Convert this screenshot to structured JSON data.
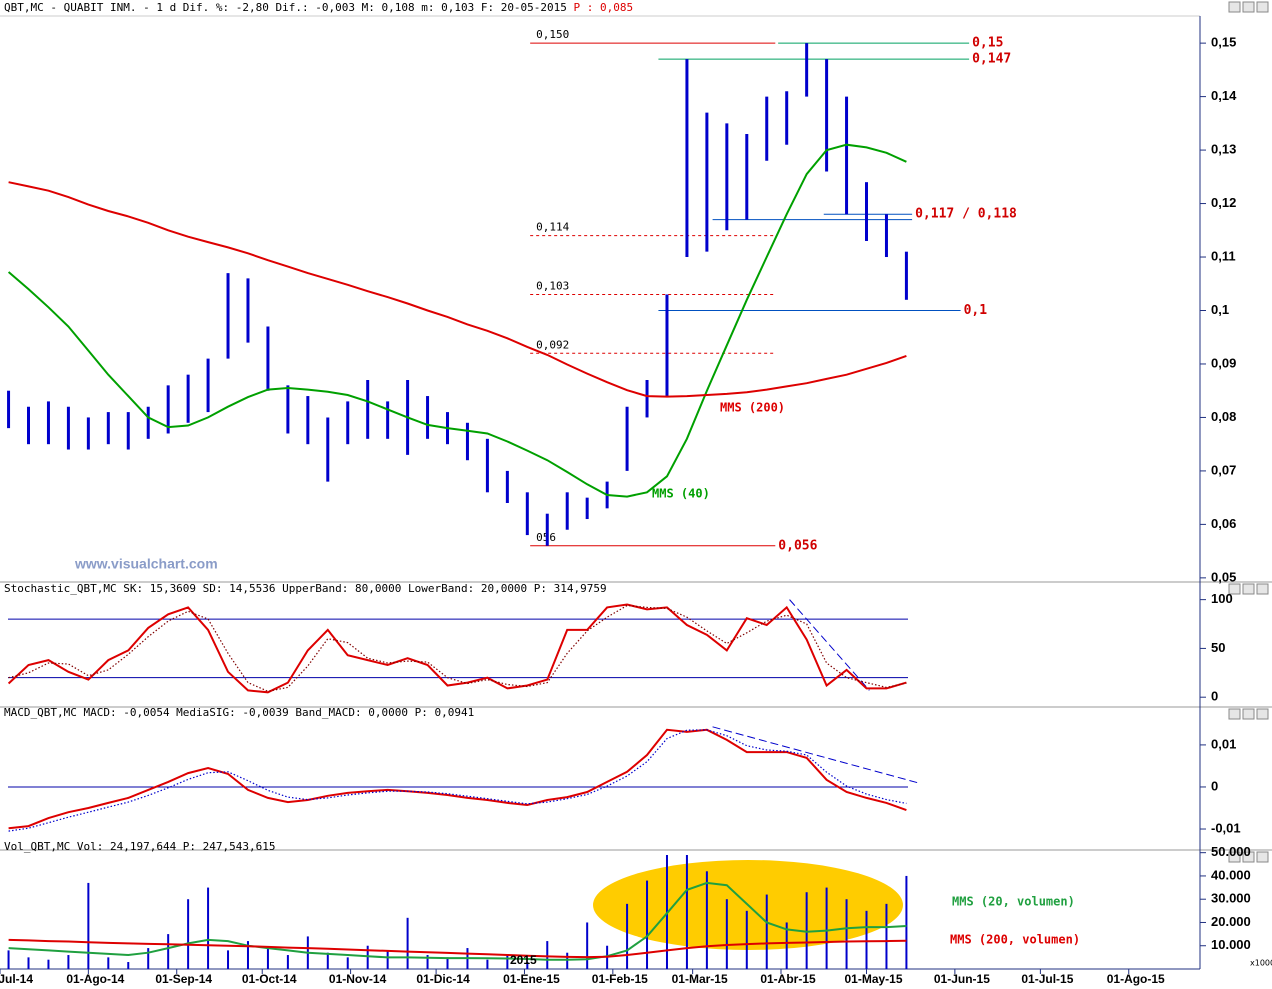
{
  "chart_data": [
    {
      "type": "candlestick",
      "title": "QBT,MC - QUABIT INM. -  1 d Dif. %: -2,80 Dif.: -0,003 M: 0,108 m: 0,103 F: 20-05-2015 ",
      "title_price": "P : 0,085",
      "watermark": "www.visualchart.com",
      "color": "#0000cc",
      "xlim": [
        "2014-07-01",
        "2015-08-26"
      ],
      "x": [
        "2014-07-04",
        "2014-07-11",
        "2014-07-18",
        "2014-07-25",
        "2014-08-01",
        "2014-08-08",
        "2014-08-15",
        "2014-08-22",
        "2014-08-29",
        "2014-09-05",
        "2014-09-12",
        "2014-09-19",
        "2014-09-26",
        "2014-10-03",
        "2014-10-10",
        "2014-10-17",
        "2014-10-24",
        "2014-10-31",
        "2014-11-07",
        "2014-11-14",
        "2014-11-21",
        "2014-11-28",
        "2014-12-05",
        "2014-12-12",
        "2014-12-19",
        "2014-12-26",
        "2015-01-02",
        "2015-01-09",
        "2015-01-16",
        "2015-01-23",
        "2015-01-30",
        "2015-02-06",
        "2015-02-13",
        "2015-02-20",
        "2015-02-27",
        "2015-03-06",
        "2015-03-13",
        "2015-03-20",
        "2015-03-27",
        "2015-04-03",
        "2015-04-10",
        "2015-04-17",
        "2015-04-24",
        "2015-05-01",
        "2015-05-08",
        "2015-05-15"
      ],
      "high": [
        0.085,
        0.082,
        0.083,
        0.082,
        0.08,
        0.081,
        0.081,
        0.082,
        0.086,
        0.088,
        0.091,
        0.107,
        0.106,
        0.097,
        0.086,
        0.084,
        0.08,
        0.083,
        0.087,
        0.083,
        0.087,
        0.084,
        0.081,
        0.079,
        0.076,
        0.07,
        0.066,
        0.062,
        0.066,
        0.065,
        0.068,
        0.082,
        0.087,
        0.103,
        0.147,
        0.137,
        0.135,
        0.133,
        0.14,
        0.141,
        0.15,
        0.147,
        0.14,
        0.124,
        0.118,
        0.111
      ],
      "low": [
        0.078,
        0.075,
        0.075,
        0.074,
        0.074,
        0.075,
        0.074,
        0.076,
        0.077,
        0.079,
        0.081,
        0.091,
        0.094,
        0.085,
        0.077,
        0.075,
        0.068,
        0.075,
        0.076,
        0.076,
        0.073,
        0.076,
        0.075,
        0.072,
        0.066,
        0.064,
        0.058,
        0.056,
        0.059,
        0.061,
        0.063,
        0.07,
        0.08,
        0.084,
        0.11,
        0.111,
        0.115,
        0.117,
        0.128,
        0.131,
        0.14,
        0.126,
        0.118,
        0.113,
        0.11,
        0.102
      ],
      "series": [
        {
          "name": "MMS (40)",
          "color": "#00a000",
          "values": [
            0.1072,
            0.104,
            0.1006,
            0.097,
            0.0925,
            0.088,
            0.084,
            0.08,
            0.0782,
            0.0785,
            0.08,
            0.082,
            0.0838,
            0.0852,
            0.0855,
            0.0852,
            0.0848,
            0.0842,
            0.083,
            0.0815,
            0.08,
            0.0786,
            0.078,
            0.0775,
            0.077,
            0.0755,
            0.0738,
            0.072,
            0.0698,
            0.0675,
            0.0655,
            0.0652,
            0.066,
            0.069,
            0.076,
            0.085,
            0.0935,
            0.102,
            0.11,
            0.118,
            0.1255,
            0.13,
            0.131,
            0.1305,
            0.1295,
            0.1278
          ]
        },
        {
          "name": "MMS (200)",
          "color": "#dd0000",
          "values": [
            0.124,
            0.1232,
            0.1224,
            0.1212,
            0.1198,
            0.1186,
            0.1176,
            0.1164,
            0.115,
            0.1138,
            0.1128,
            0.1118,
            0.1107,
            0.1094,
            0.1082,
            0.107,
            0.1059,
            0.1048,
            0.1036,
            0.1025,
            0.1013,
            0.1,
            0.0988,
            0.0974,
            0.0962,
            0.0948,
            0.0932,
            0.0917,
            0.0899,
            0.0882,
            0.0866,
            0.0851,
            0.084,
            0.0839,
            0.084,
            0.0842,
            0.0844,
            0.0847,
            0.0852,
            0.0858,
            0.0864,
            0.0872,
            0.088,
            0.0891,
            0.0902,
            0.0915
          ]
        }
      ],
      "ylim": [
        0.0496,
        0.1547
      ],
      "yticks": [
        {
          "value": 0.15,
          "label": "0,15"
        },
        {
          "value": 0.14,
          "label": "0,14"
        },
        {
          "value": 0.13,
          "label": "0,13"
        },
        {
          "value": 0.12,
          "label": "0,12"
        },
        {
          "value": 0.11,
          "label": "0,11"
        },
        {
          "value": 0.1,
          "label": "0,1"
        },
        {
          "value": 0.09,
          "label": "0,09"
        },
        {
          "value": 0.08,
          "label": "0,08"
        },
        {
          "value": 0.07,
          "label": "0,07"
        },
        {
          "value": 0.06,
          "label": "0,06"
        },
        {
          "value": 0.05,
          "label": "0,05"
        }
      ],
      "annotations": [
        {
          "value": 0.15,
          "start": "2015-01-03",
          "end": "2015-03-30",
          "color": "#dd0000",
          "dashed": false,
          "label_start": "0,150"
        },
        {
          "value": 0.15,
          "start": "2015-03-31",
          "end": "2015-06-06",
          "color": "#00a060",
          "dashed": false,
          "label_end": "0,15"
        },
        {
          "value": 0.147,
          "start": "2015-02-17",
          "end": "2015-06-06",
          "color": "#00a060",
          "dashed": false,
          "label_end": "0,147"
        },
        {
          "value": 0.114,
          "start": "2015-01-03",
          "end": "2015-03-30",
          "color": "#dd0000",
          "dashed": true,
          "label_start": "0,114"
        },
        {
          "value": 0.103,
          "start": "2015-01-03",
          "end": "2015-03-30",
          "color": "#dd0000",
          "dashed": true,
          "label_start": "0,103"
        },
        {
          "value": 0.092,
          "start": "2015-01-03",
          "end": "2015-03-30",
          "color": "#dd0000",
          "dashed": true,
          "label_start": "0,092"
        },
        {
          "value": 0.117,
          "start": "2015-03-08",
          "end": "2015-05-17",
          "color": "#0050c0",
          "dashed": false
        },
        {
          "value": 0.118,
          "start": "2015-04-16",
          "end": "2015-05-17",
          "color": "#0050c0",
          "dashed": false,
          "label_end": "0,117 / 0,118"
        },
        {
          "value": 0.1,
          "start": "2015-02-17",
          "end": "2015-06-03",
          "color": "#0050c0",
          "dashed": false,
          "label_end": "0,1"
        },
        {
          "value": 0.056,
          "start": "2015-01-03",
          "end": "2015-03-30",
          "color": "#dd0000",
          "dashed": false,
          "label_start": "056",
          "label_end": "0,056"
        }
      ]
    },
    {
      "type": "line",
      "title": "Stochastic_QBT,MC SK: 15,3609 SD: 14,5536 UpperBand: 80,0000 LowerBand: 20,0000 P: 314,9759",
      "series": [
        {
          "color": "#dd0000",
          "values": [
            14,
            33,
            38,
            26,
            18,
            38,
            48,
            71,
            85,
            92,
            69,
            26,
            7,
            5,
            15,
            48,
            69,
            43,
            38,
            33,
            40,
            33,
            12,
            15,
            20,
            9,
            12,
            18,
            69,
            69,
            92,
            95,
            90,
            92,
            74,
            64,
            48,
            81,
            74,
            92,
            59,
            12,
            28,
            9,
            9,
            15
          ]
        },
        {
          "color": "#800000",
          "dotted": true,
          "values": [
            20,
            25,
            35,
            34,
            22,
            28,
            44,
            62,
            78,
            88,
            80,
            45,
            15,
            6,
            10,
            32,
            60,
            56,
            40,
            35,
            37,
            36,
            20,
            14,
            18,
            13,
            11,
            15,
            45,
            68,
            82,
            94,
            92,
            91,
            82,
            68,
            55,
            66,
            78,
            84,
            75,
            35,
            20,
            15,
            10,
            14.5
          ]
        }
      ],
      "bands": [
        80,
        20
      ],
      "trendlines": [
        {
          "start": "2015-04-04",
          "end": "2015-05-02",
          "values": [
            100,
            7
          ],
          "color": "#0000cc"
        }
      ],
      "ylim": [
        -8,
        115
      ],
      "yticks": [
        100,
        50,
        0
      ]
    },
    {
      "type": "line",
      "title": "MACD_QBT,MC MACD: -0,0054 MediaSIG: -0,0039 Band_MACD: 0,0000 P: 0,0941",
      "series": [
        {
          "color": "#dd0000",
          "values": [
            -0.0098,
            -0.0093,
            -0.0074,
            -0.006,
            -0.005,
            -0.0038,
            -0.0026,
            -0.0007,
            0.0012,
            0.0033,
            0.0045,
            0.0031,
            -0.0007,
            -0.0026,
            -0.0036,
            -0.0031,
            -0.0021,
            -0.0014,
            -0.001,
            -0.0007,
            -0.001,
            -0.0014,
            -0.0019,
            -0.0026,
            -0.0031,
            -0.0038,
            -0.0043,
            -0.0031,
            -0.0024,
            -0.0012,
            0.0012,
            0.0036,
            0.0076,
            0.0136,
            0.0131,
            0.0136,
            0.0112,
            0.0083,
            0.0083,
            0.0083,
            0.0069,
            0.0017,
            -0.0012,
            -0.0026,
            -0.0038,
            -0.0055
          ]
        },
        {
          "color": "#0000cc",
          "dotted": true,
          "values": [
            -0.0105,
            -0.0098,
            -0.0085,
            -0.0072,
            -0.006,
            -0.0048,
            -0.0036,
            -0.002,
            -0.0002,
            0.0018,
            0.0034,
            0.0036,
            0.0015,
            -0.0008,
            -0.0024,
            -0.003,
            -0.0026,
            -0.0019,
            -0.0014,
            -0.001,
            -0.001,
            -0.0012,
            -0.0016,
            -0.0022,
            -0.0028,
            -0.0034,
            -0.004,
            -0.0036,
            -0.0028,
            -0.0018,
            0.0002,
            0.0026,
            0.006,
            0.0115,
            0.0135,
            0.0136,
            0.0122,
            0.0098,
            0.0088,
            0.0085,
            0.0076,
            0.0035,
            0.0002,
            -0.0017,
            -0.003,
            -0.0039
          ]
        }
      ],
      "bands": [
        0
      ],
      "trendlines": [
        {
          "start": "2015-03-08",
          "end": "2015-05-19",
          "values": [
            0.0143,
            0.001
          ],
          "color": "#0000cc"
        }
      ],
      "ylim": [
        -0.0138,
        0.0183
      ],
      "yticks": [
        {
          "value": 0.01,
          "label": "0,01"
        },
        0,
        {
          "value": -0.01,
          "label": "-0,01"
        }
      ]
    },
    {
      "type": "bar",
      "title": "Vol_QBT,MC Vol: 24,197,644 P: 247,543,615",
      "color": "#0000cc",
      "values": [
        8000,
        5000,
        4000,
        6000,
        37000,
        5000,
        3000,
        9000,
        15000,
        30000,
        35000,
        8000,
        12000,
        9000,
        6000,
        14000,
        7000,
        5000,
        10000,
        8000,
        22000,
        6000,
        5000,
        9000,
        4000,
        6000,
        3000,
        12000,
        7000,
        20000,
        10000,
        28000,
        38000,
        49000,
        49000,
        42000,
        30000,
        25000,
        32000,
        20000,
        33000,
        35000,
        30000,
        25000,
        28000,
        40000
      ],
      "series": [
        {
          "name": "MMS (20, volumen)",
          "color": "#20a040",
          "values": [
            9000,
            8500,
            8000,
            7500,
            7000,
            6500,
            6000,
            7000,
            9000,
            11000,
            12500,
            12000,
            10000,
            9000,
            8000,
            7000,
            6500,
            6000,
            5500,
            5000,
            5000,
            4800,
            4700,
            4700,
            4600,
            4500,
            4300,
            4000,
            4000,
            4200,
            5500,
            8000,
            14000,
            24000,
            34000,
            37000,
            36000,
            28000,
            20000,
            17000,
            16000,
            16500,
            17500,
            18000,
            18000,
            18500
          ]
        },
        {
          "name": "MMS (200, volumen)",
          "color": "#dd0000",
          "values": [
            12500,
            12300,
            12000,
            11800,
            11500,
            11200,
            11000,
            10800,
            10600,
            10400,
            10200,
            10000,
            9800,
            9500,
            9200,
            9000,
            8700,
            8400,
            8100,
            7800,
            7500,
            7200,
            6900,
            6600,
            6300,
            6000,
            5700,
            5400,
            5200,
            5100,
            5300,
            6000,
            7000,
            8000,
            9000,
            9800,
            10300,
            10700,
            11000,
            11200,
            11400,
            11600,
            11800,
            11900,
            12000,
            12100
          ]
        }
      ],
      "year_label": "2015",
      "unit_label": "x1000",
      "ylim": [
        0,
        49000
      ],
      "yticks": [
        {
          "value": 50000,
          "label": "50.000"
        },
        {
          "value": 40000,
          "label": "40.000"
        },
        {
          "value": 30000,
          "label": "30.000"
        },
        {
          "value": 20000,
          "label": "20.000"
        },
        {
          "value": 10000,
          "label": "10.000"
        }
      ],
      "xticks": [
        {
          "value": "2014-07-01",
          "label": "01-Jul-14"
        },
        {
          "value": "2014-08-01",
          "label": "01-Ago-14"
        },
        {
          "value": "2014-09-01",
          "label": "01-Sep-14"
        },
        {
          "value": "2014-10-01",
          "label": "01-Oct-14"
        },
        {
          "value": "2014-11-01",
          "label": "01-Nov-14"
        },
        {
          "value": "2014-12-01",
          "label": "01-Dic-14"
        },
        {
          "value": "2015-01-01",
          "label": "01-Ene-15"
        },
        {
          "value": "2015-02-01",
          "label": "01-Feb-15"
        },
        {
          "value": "2015-03-01",
          "label": "01-Mar-15"
        },
        {
          "value": "2015-04-01",
          "label": "01-Abr-15"
        },
        {
          "value": "2015-05-01",
          "label": "01-May-15"
        },
        {
          "value": "2015-06-01",
          "label": "01-Jun-15"
        },
        {
          "value": "2015-07-01",
          "label": "01-Jul-15"
        },
        {
          "value": "2015-08-01",
          "label": "01-Ago-15"
        }
      ]
    }
  ]
}
